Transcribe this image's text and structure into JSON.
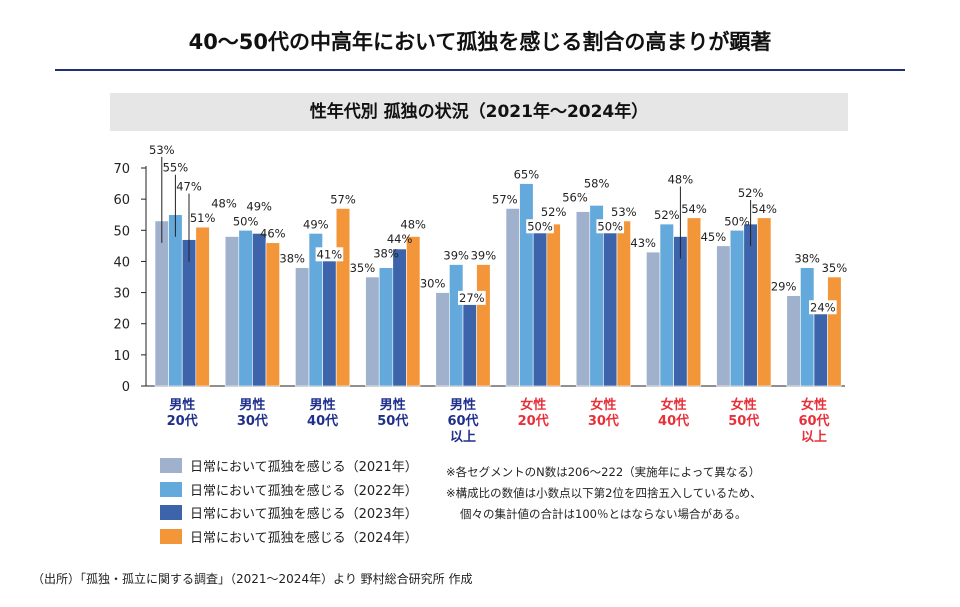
{
  "title": "40〜50代の中高年において孤独を感じる割合の高まりが顕著",
  "chart_data": {
    "type": "bar",
    "title": "性年代別 孤独の状況（2021年〜2024年）",
    "categories": [
      {
        "lines": [
          "男性",
          "20代"
        ],
        "gender": "male"
      },
      {
        "lines": [
          "男性",
          "30代"
        ],
        "gender": "male"
      },
      {
        "lines": [
          "男性",
          "40代"
        ],
        "gender": "male"
      },
      {
        "lines": [
          "男性",
          "50代"
        ],
        "gender": "male"
      },
      {
        "lines": [
          "男性",
          "60代",
          "以上"
        ],
        "gender": "male"
      },
      {
        "lines": [
          "女性",
          "20代"
        ],
        "gender": "female"
      },
      {
        "lines": [
          "女性",
          "30代"
        ],
        "gender": "female"
      },
      {
        "lines": [
          "女性",
          "40代"
        ],
        "gender": "female"
      },
      {
        "lines": [
          "女性",
          "50代"
        ],
        "gender": "female"
      },
      {
        "lines": [
          "女性",
          "60代",
          "以上"
        ],
        "gender": "female"
      }
    ],
    "series": [
      {
        "name": "日常において孤独を感じる（2021年）",
        "color": "#9fb1cd",
        "values": [
          53,
          48,
          38,
          35,
          30,
          57,
          56,
          43,
          45,
          29
        ]
      },
      {
        "name": "日常において孤独を感じる（2022年）",
        "color": "#63a9db",
        "values": [
          55,
          50,
          49,
          38,
          39,
          65,
          58,
          52,
          50,
          38
        ]
      },
      {
        "name": "日常において孤独を感じる（2023年）",
        "color": "#3d64aa",
        "values": [
          47,
          49,
          41,
          44,
          27,
          50,
          50,
          48,
          52,
          24
        ]
      },
      {
        "name": "日常において孤独を感じる（2024年）",
        "color": "#f3963a",
        "values": [
          51,
          46,
          57,
          48,
          39,
          52,
          53,
          54,
          54,
          35
        ]
      }
    ],
    "value_suffix": "%",
    "ylim": [
      0,
      70
    ],
    "yticks": [
      0,
      10,
      20,
      30,
      40,
      50,
      60,
      70
    ],
    "grid": false,
    "legend_position": "bottom-left",
    "label_colors": {
      "male": "#1f2f8c",
      "female": "#e8303a"
    }
  },
  "notes": [
    "※各セグメントのN数は206〜222（実施年によって異なる）",
    "※構成比の数値は小数点以下第2位を四捨五入しているため、",
    "個々の集計値の合計は100％とはならない場合がある。"
  ],
  "source": "（出所）「孤独・孤立に関する調査」（2021〜2024年）より 野村総合研究所 作成"
}
